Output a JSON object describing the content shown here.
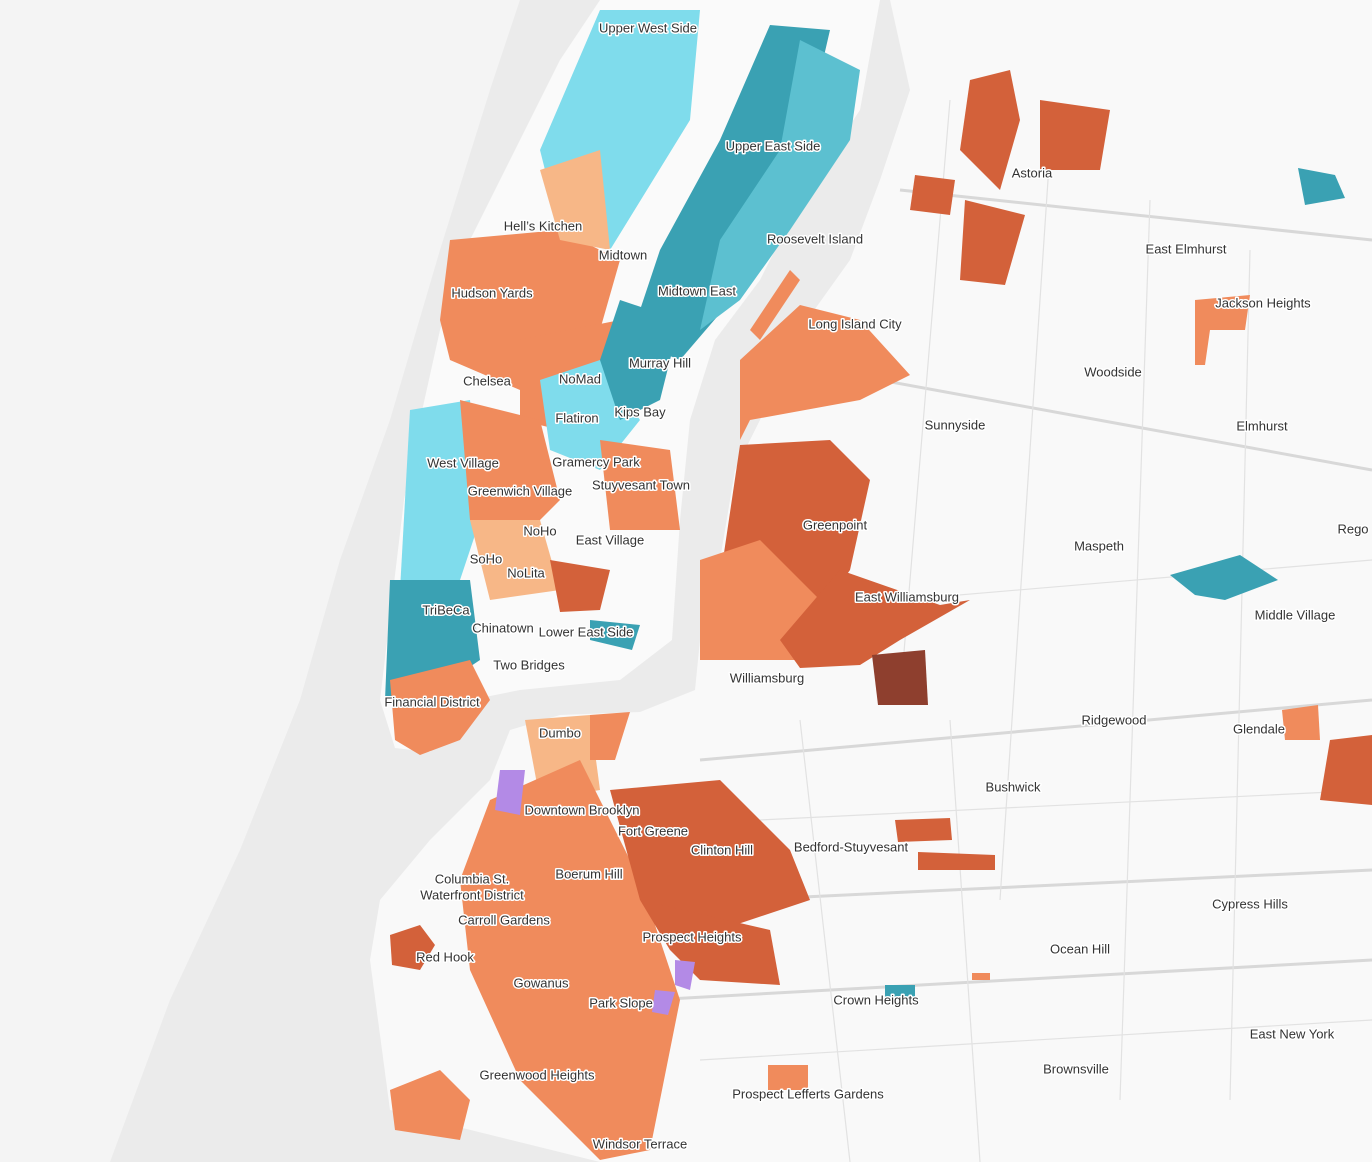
{
  "labels": [
    "Upper West Side",
    "Upper East Side",
    "Astoria",
    "Hell’s Kitchen",
    "Roosevelt Island",
    "East Elmhurst",
    "Midtown",
    "Hudson Yards",
    "Midtown East",
    "Jackson Heights",
    "Long Island City",
    "Murray Hill",
    "NoMad",
    "Chelsea",
    "Woodside",
    "Kips Bay",
    "Flatiron",
    "Sunnyside",
    "Elmhurst",
    "Gramercy Park",
    "West Village",
    "Stuyvesant Town",
    "Greenwich Village",
    "Greenpoint",
    "NoHo",
    "Rego",
    "East Village",
    "Maspeth",
    "SoHo",
    "NoLita",
    "East Williamsburg",
    "Middle Village",
    "TriBeCa",
    "Chinatown",
    "Lower East Side",
    "Two Bridges",
    "Williamsburg",
    "Financial District",
    "Ridgewood",
    "Glendale",
    "Dumbo",
    "Bushwick",
    "Downtown Brooklyn",
    "Fort Greene",
    "Clinton Hill",
    "Bedford-Stuyvesant",
    "Columbia St.",
    "Waterfront District",
    "Boerum Hill",
    "Cypress Hills",
    "Carroll Gardens",
    "Prospect Heights",
    "Ocean Hill",
    "Red Hook",
    "Gowanus",
    "Crown Heights",
    "Park Slope",
    "East New York",
    "Brownsville",
    "Greenwood Heights",
    "Prospect Lefferts Gardens",
    "Windsor Terrace"
  ]
}
